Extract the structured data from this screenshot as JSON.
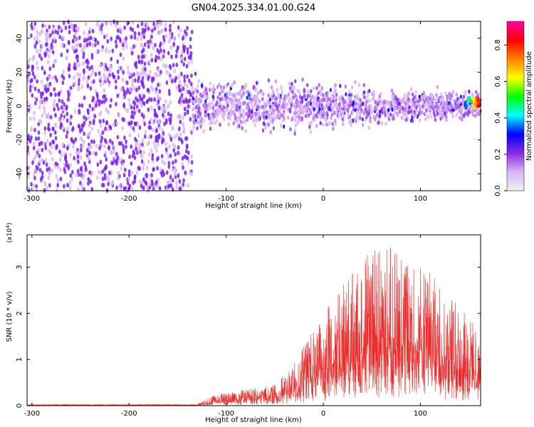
{
  "title": "GN04.2025.334.01.00.G24",
  "colors": {
    "snr_line": "#ee2a2a",
    "scatter_main": "#7a1ff0",
    "scatter_light": "#d9b8f5"
  },
  "chart_data": [
    {
      "type": "heatmap",
      "xlabel": "Height of straight line (km)",
      "ylabel": "Frequency (Hz)",
      "xlim": [
        -305,
        162
      ],
      "ylim": [
        -50,
        50
      ],
      "xticks": [
        -300,
        -200,
        -100,
        0,
        100
      ],
      "yticks": [
        -40,
        -20,
        0,
        20,
        40
      ],
      "colorbar": {
        "label": "Normalized spectral amplitude",
        "range": [
          0,
          0.93
        ],
        "ticks": [
          0.0,
          0.2,
          0.4,
          0.6,
          0.8
        ],
        "colormap": [
          "#f0f0f0",
          "#d8b4f8",
          "#8a2be2",
          "#0000ff",
          "#00ffff",
          "#00ff00",
          "#ffff00",
          "#ff8000",
          "#ff0000",
          "#ff00aa"
        ]
      },
      "regions": [
        {
          "x_range": [
            -305,
            -135
          ],
          "y_range": [
            -50,
            50
          ],
          "amplitude_range": [
            0.0,
            0.12
          ],
          "density": "high"
        },
        {
          "x_range": [
            -135,
            162
          ],
          "y_range": [
            -20,
            20
          ],
          "amplitude_range": [
            0.05,
            0.35
          ],
          "density": "medium"
        }
      ],
      "peak": {
        "x": 160,
        "y": 2,
        "amplitude": 0.9
      }
    },
    {
      "type": "line",
      "xlabel": "Height of straight line (km)",
      "ylabel": "SNR (10 * v/v)",
      "y_multiplier": "(x10",
      "y_multiplier_exp": "4",
      "y_multiplier_close": ")",
      "xlim": [
        -305,
        162
      ],
      "ylim": [
        0,
        3.7
      ],
      "xticks": [
        -300,
        -200,
        -100,
        0,
        100
      ],
      "yticks": [
        0,
        1,
        2,
        3
      ],
      "envelope": [
        {
          "x": -305,
          "y": 0.02
        },
        {
          "x": -200,
          "y": 0.02
        },
        {
          "x": -130,
          "y": 0.03
        },
        {
          "x": -110,
          "y": 0.25
        },
        {
          "x": -80,
          "y": 0.35
        },
        {
          "x": -50,
          "y": 0.45
        },
        {
          "x": -30,
          "y": 0.9
        },
        {
          "x": -10,
          "y": 1.7
        },
        {
          "x": 10,
          "y": 2.3
        },
        {
          "x": 30,
          "y": 2.9
        },
        {
          "x": 50,
          "y": 3.4
        },
        {
          "x": 70,
          "y": 3.5
        },
        {
          "x": 90,
          "y": 3.1
        },
        {
          "x": 110,
          "y": 2.9
        },
        {
          "x": 130,
          "y": 2.4
        },
        {
          "x": 150,
          "y": 1.9
        },
        {
          "x": 162,
          "y": 1.7
        }
      ]
    }
  ]
}
